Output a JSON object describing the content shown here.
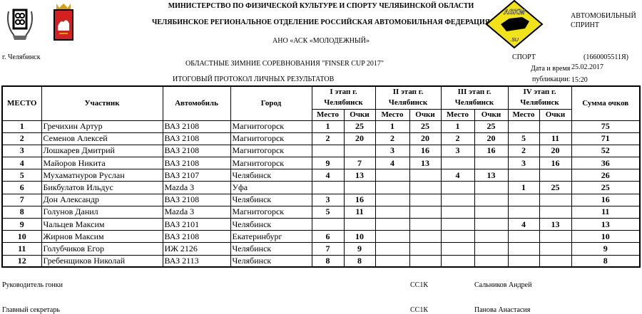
{
  "header": {
    "ministry": "МИНИСТЕРСТВО ПО ФИЗИЧЕСКОЙ КУЛЬТУРЕ И СПОРТУ ЧЕЛЯБИНСКОЙ ОБЛАСТИ",
    "federation": "ЧЕЛЯБИНСКОЕ РЕГИОНАЛЬНОЕ ОТДЕЛЕНИЕ РОССИЙСКАЯ АВТОМОБИЛЬНАЯ ФЕДЕРАЦИЯ",
    "organizer": "АНО «АСК «МОЛОДЕЖНЫЙ»",
    "city": "г. Челябинск",
    "competition": "ОБЛАСТНЫЕ ЗИМНИЕ СОРЕВНОВАНИЯ  \"FINSER CUP 2017\"",
    "protocol": "ИТОГОВЫЙ ПРОТОКОЛ ЛИЧНЫХ РЕЗУЛЬТАТОВ",
    "discipline_line1": "АВТОМОБИЛЬНЫЙ",
    "discipline_line2": "СПРИНТ",
    "sport": "СПОРТ",
    "sport_code": "(1660005511Я)",
    "date_label": "Дата и время",
    "date": "25.02.2017",
    "pub_label": "публикации:",
    "time": "15:20",
    "logo_text": "ASKM",
    "logo_sub": ".SU"
  },
  "table": {
    "headers": {
      "place": "МЕСТО",
      "participant": "Участник",
      "car": "Автомобиль",
      "city": "Город",
      "total": "Сумма очков"
    },
    "stages": [
      {
        "l1": "I этап г.",
        "l2": "Челябинск"
      },
      {
        "l1": "II этап г.",
        "l2": "Челябинск"
      },
      {
        "l1": "III этап г.",
        "l2": "Челябинск"
      },
      {
        "l1": "IV этап г.",
        "l2": "Челябинск"
      }
    ],
    "sub_place": "Место",
    "sub_points": "Очки",
    "rows": [
      {
        "place": "1",
        "name": "Гречихин Артур",
        "car": "ВАЗ 2108",
        "city": "Магнитогорск",
        "s": [
          "1",
          "25",
          "1",
          "25",
          "1",
          "25",
          "",
          ""
        ],
        "total": "75"
      },
      {
        "place": "2",
        "name": "Семенов Алексей",
        "car": "ВАЗ 2108",
        "city": "Магнитогорск",
        "s": [
          "2",
          "20",
          "2",
          "20",
          "2",
          "20",
          "5",
          "11"
        ],
        "total": "71"
      },
      {
        "place": "3",
        "name": "Лошкарев Дмитрий",
        "car": "ВАЗ 2108",
        "city": "Магнитогорск",
        "s": [
          "",
          "",
          "3",
          "16",
          "3",
          "16",
          "2",
          "20"
        ],
        "total": "52"
      },
      {
        "place": "4",
        "name": "Майоров Никита",
        "car": "ВАЗ 2108",
        "city": "Магнитогорск",
        "s": [
          "9",
          "7",
          "4",
          "13",
          "",
          "",
          "3",
          "16"
        ],
        "total": "36"
      },
      {
        "place": "5",
        "name": "Мухаматнуров Руслан",
        "car": "ВАЗ 2107",
        "city": "Челябинск",
        "s": [
          "4",
          "13",
          "",
          "",
          "4",
          "13",
          "",
          ""
        ],
        "total": "26"
      },
      {
        "place": "6",
        "name": "Бикбулатов Ильдус",
        "car": "Mazda 3",
        "city": "Уфа",
        "s": [
          "",
          "",
          "",
          "",
          "",
          "",
          "1",
          "25"
        ],
        "total": "25"
      },
      {
        "place": "7",
        "name": "Дон Александр",
        "car": "ВАЗ 2108",
        "city": "Челябинск",
        "s": [
          "3",
          "16",
          "",
          "",
          "",
          "",
          "",
          ""
        ],
        "total": "16"
      },
      {
        "place": "8",
        "name": "Голунов Данил",
        "car": "Mazda 3",
        "city": "Магнитогорск",
        "s": [
          "5",
          "11",
          "",
          "",
          "",
          "",
          "",
          ""
        ],
        "total": "11"
      },
      {
        "place": "9",
        "name": "Чальцев Максим",
        "car": "ВАЗ 2101",
        "city": "Челябинск",
        "s": [
          "",
          "",
          "",
          "",
          "",
          "",
          "4",
          "13"
        ],
        "total": "13"
      },
      {
        "place": "10",
        "name": "Жирнов Максим",
        "car": "ВАЗ 2108",
        "city": "Екатеринбург",
        "s": [
          "6",
          "10",
          "",
          "",
          "",
          "",
          "",
          ""
        ],
        "total": "10"
      },
      {
        "place": "11",
        "name": "Голубчиков Егор",
        "car": "ИЖ 2126",
        "city": "Челябинск",
        "s": [
          "7",
          "9",
          "",
          "",
          "",
          "",
          "",
          ""
        ],
        "total": "9"
      },
      {
        "place": "12",
        "name": "Гребенщиков Николай",
        "car": "ВАЗ 2113",
        "city": "Челябинск",
        "s": [
          "8",
          "8",
          "",
          "",
          "",
          "",
          "",
          ""
        ],
        "total": "8"
      }
    ]
  },
  "footer": [
    {
      "role": "Руководитель гонки",
      "category": "СС1К",
      "name": "Сальников Андрей"
    },
    {
      "role": "Главный секретарь",
      "category": "СС1К",
      "name": "Панова Анастасия"
    }
  ]
}
